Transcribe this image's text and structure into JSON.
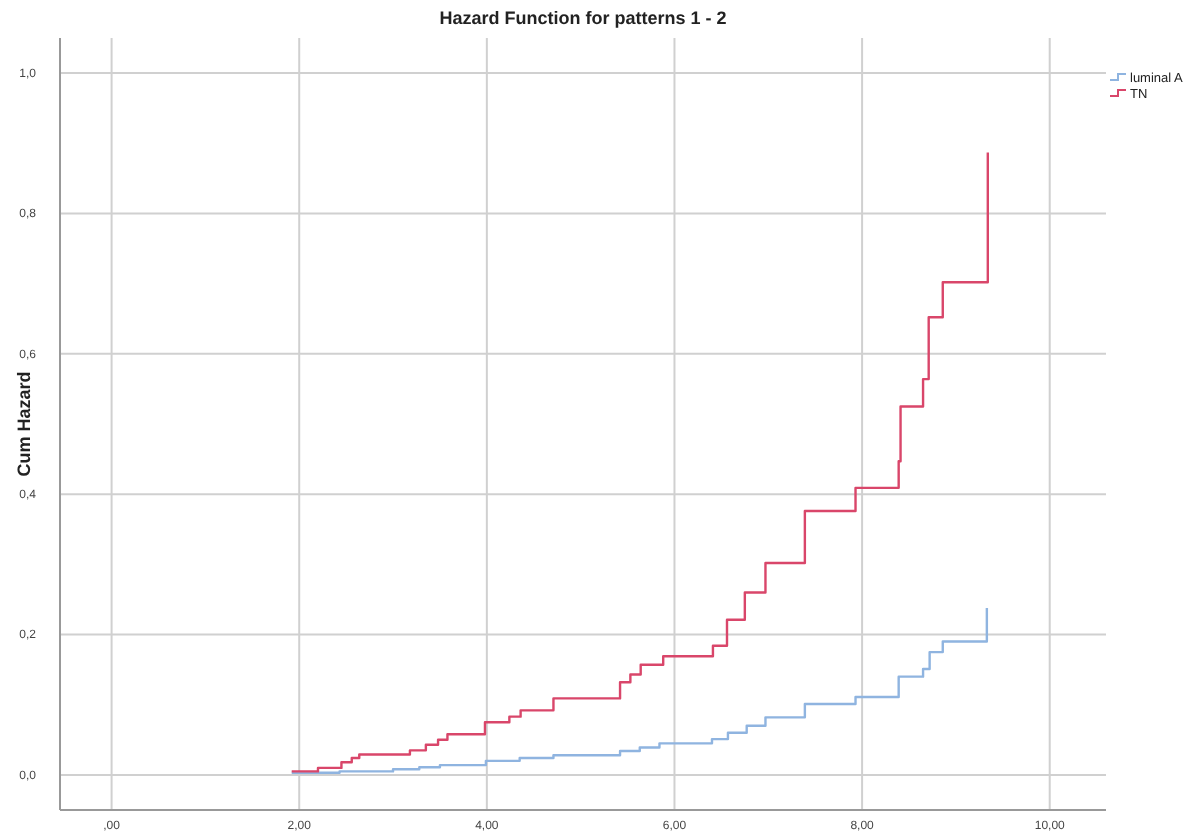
{
  "chart_data": {
    "type": "step",
    "title": "Hazard Function for patterns 1 - 2",
    "ylabel": "Cum Hazard",
    "xlim": [
      -0.55,
      10.6
    ],
    "ylim": [
      -0.05,
      1.05
    ],
    "xticks": [
      {
        "value": 0,
        "label": ",00"
      },
      {
        "value": 2,
        "label": "2,00"
      },
      {
        "value": 4,
        "label": "4,00"
      },
      {
        "value": 6,
        "label": "6,00"
      },
      {
        "value": 8,
        "label": "8,00"
      },
      {
        "value": 10,
        "label": "10,00"
      }
    ],
    "yticks": [
      {
        "value": 0,
        "label": "0,0"
      },
      {
        "value": 0.2,
        "label": "0,2"
      },
      {
        "value": 0.4,
        "label": "0,4"
      },
      {
        "value": 0.6,
        "label": "0,6"
      },
      {
        "value": 0.8,
        "label": "0,8"
      },
      {
        "value": 1,
        "label": "1,0"
      }
    ],
    "grid": true,
    "legend": "right",
    "line_style": "solid",
    "marker": "none",
    "series": [
      {
        "name": "luminal A",
        "color": "#8fb4e0",
        "x": [
          1.92,
          2.43,
          3.0,
          3.28,
          3.5,
          3.99,
          4.35,
          4.71,
          5.42,
          5.63,
          5.84,
          6.4,
          6.57,
          6.77,
          6.97,
          7.39,
          7.93,
          8.39,
          8.65,
          8.72,
          8.86,
          9.33
        ],
        "values": [
          0.003,
          0.005,
          0.008,
          0.011,
          0.014,
          0.02,
          0.024,
          0.028,
          0.034,
          0.039,
          0.045,
          0.051,
          0.06,
          0.07,
          0.082,
          0.101,
          0.111,
          0.14,
          0.151,
          0.175,
          0.19,
          0.238
        ]
      },
      {
        "name": "TN",
        "color": "#d9466a",
        "x": [
          1.92,
          2.2,
          2.45,
          2.56,
          2.64,
          3.18,
          3.35,
          3.48,
          3.58,
          3.98,
          4.24,
          4.36,
          4.71,
          5.42,
          5.53,
          5.64,
          5.88,
          6.41,
          6.56,
          6.75,
          6.97,
          7.39,
          7.93,
          8.39,
          8.41,
          8.65,
          8.71,
          8.86,
          9.34
        ],
        "values": [
          0.005,
          0.01,
          0.018,
          0.024,
          0.029,
          0.035,
          0.043,
          0.05,
          0.058,
          0.075,
          0.083,
          0.092,
          0.109,
          0.132,
          0.143,
          0.157,
          0.169,
          0.184,
          0.221,
          0.26,
          0.302,
          0.376,
          0.409,
          0.447,
          0.525,
          0.564,
          0.652,
          0.702,
          0.887
        ]
      }
    ]
  }
}
